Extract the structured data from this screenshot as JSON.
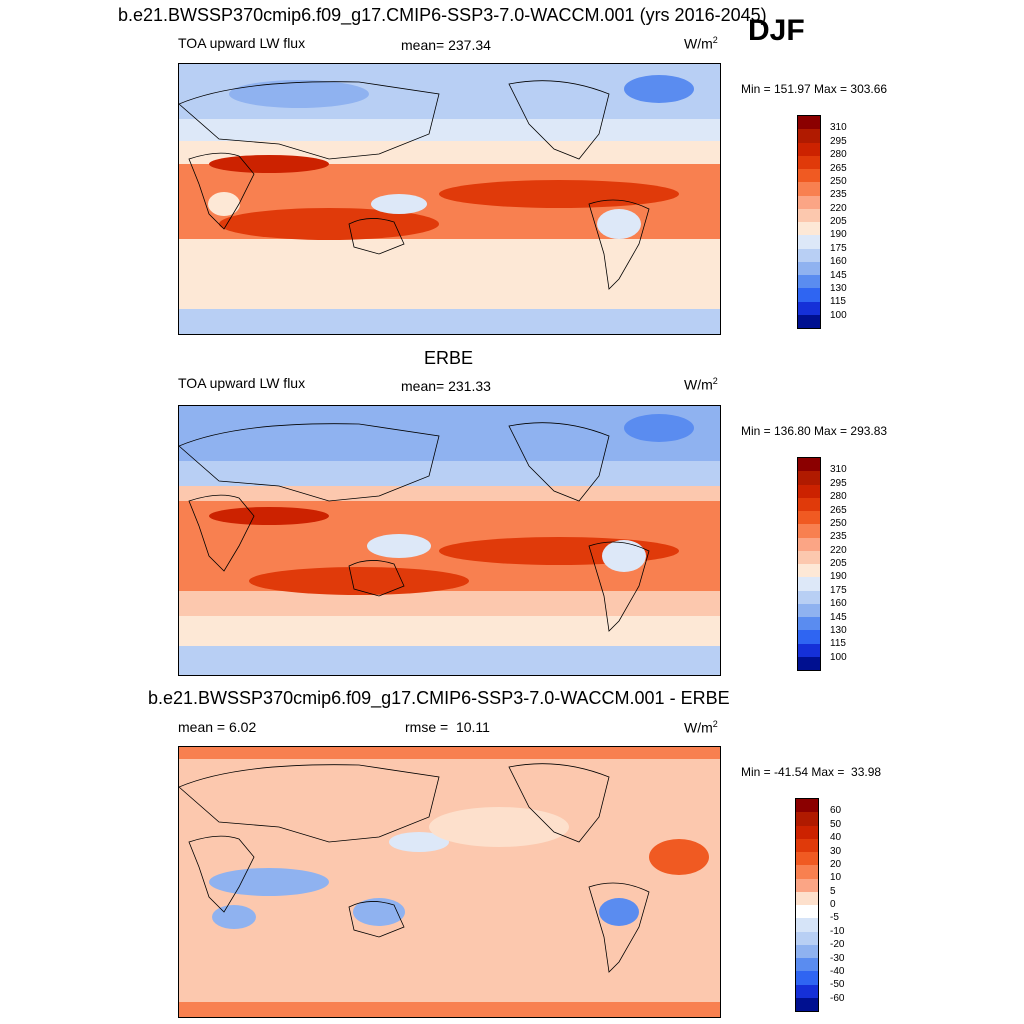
{
  "header": {
    "title": "b.e21.BWSSP370cmip6.f09_g17.CMIP6-SSP3-7.0-WACCM.001 (yrs 2016-2045)",
    "season": "DJF"
  },
  "panels": [
    {
      "id": "model",
      "left_label": "TOA upward LW flux",
      "center_label": "mean= 237.34",
      "units": "W/m",
      "units_exp": "2",
      "minmax": "Min = 151.97 Max = 303.66"
    },
    {
      "id": "obs",
      "title": "ERBE",
      "left_label": "TOA upward LW flux",
      "center_label": "mean= 231.33",
      "units": "W/m",
      "units_exp": "2",
      "minmax": "Min = 136.80 Max = 293.83"
    },
    {
      "id": "diff",
      "title": "b.e21.BWSSP370cmip6.f09_g17.CMIP6-SSP3-7.0-WACCM.001 - ERBE",
      "left_label": "mean =   6.02",
      "center_label": "rmse =  10.11",
      "units": "W/m",
      "units_exp": "2",
      "minmax": "Min = -41.54 Max =  33.98"
    }
  ],
  "colorbars": {
    "flux": {
      "labels": [
        "310",
        "295",
        "280",
        "265",
        "250",
        "235",
        "220",
        "205",
        "190",
        "175",
        "160",
        "145",
        "130",
        "115",
        "100"
      ],
      "colors": [
        "#8b0000",
        "#b01a00",
        "#cc2200",
        "#e03a0a",
        "#f05a22",
        "#f88050",
        "#fba585",
        "#fcc8ae",
        "#fde8d6",
        "#dde8f8",
        "#b8cff4",
        "#8fb2f0",
        "#5a8cf0",
        "#2f65f2",
        "#1530d8",
        "#001090"
      ]
    },
    "diff": {
      "labels": [
        "60",
        "50",
        "40",
        "30",
        "20",
        "10",
        "5",
        "0",
        "-5",
        "-10",
        "-20",
        "-30",
        "-40",
        "-50",
        "-60"
      ],
      "colors": [
        "#8b0000",
        "#b01a00",
        "#cc2200",
        "#e03a0a",
        "#f05a22",
        "#f88050",
        "#fba585",
        "#fde0cc",
        "#ffffff",
        "#d6e4f8",
        "#b8cff4",
        "#8fb2f0",
        "#5a8cf0",
        "#2f65f2",
        "#1530d8",
        "#001090"
      ]
    }
  },
  "chart_data": [
    {
      "type": "heatmap",
      "title": "TOA upward LW flux",
      "units": "W/m2",
      "mean": 237.34,
      "min": 151.97,
      "max": 303.66,
      "contour_levels": [
        100,
        115,
        130,
        145,
        160,
        175,
        190,
        205,
        220,
        235,
        250,
        265,
        280,
        295,
        310
      ]
    },
    {
      "type": "heatmap",
      "title": "ERBE",
      "units": "W/m2",
      "mean": 231.33,
      "min": 136.8,
      "max": 293.83,
      "contour_levels": [
        100,
        115,
        130,
        145,
        160,
        175,
        190,
        205,
        220,
        235,
        250,
        265,
        280,
        295,
        310
      ]
    },
    {
      "type": "heatmap",
      "title": "b.e21.BWSSP370cmip6.f09_g17.CMIP6-SSP3-7.0-WACCM.001 - ERBE",
      "units": "W/m2",
      "mean": 6.02,
      "rmse": 10.11,
      "min": -41.54,
      "max": 33.98,
      "contour_levels": [
        -60,
        -50,
        -40,
        -30,
        -20,
        -10,
        -5,
        0,
        5,
        10,
        20,
        30,
        40,
        50,
        60
      ]
    }
  ]
}
